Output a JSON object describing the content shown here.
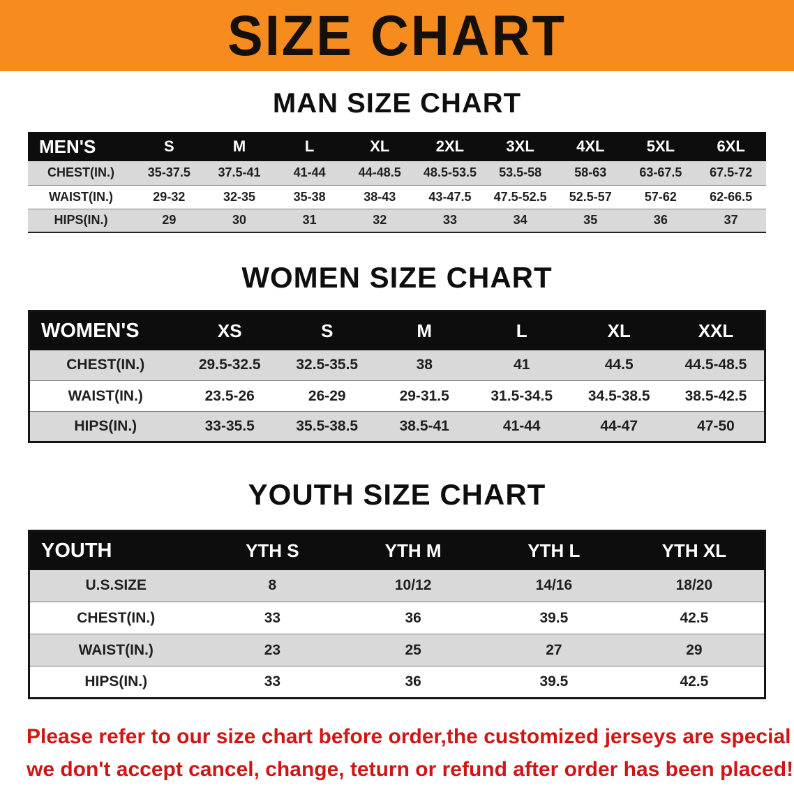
{
  "banner": {
    "title": "SIZE CHART",
    "bg_color": "#f68b1e"
  },
  "sections": [
    {
      "heading": "MAN SIZE CHART",
      "table": {
        "header": [
          "MEN'S",
          "S",
          "M",
          "L",
          "XL",
          "2XL",
          "3XL",
          "4XL",
          "5XL",
          "6XL"
        ],
        "rows": [
          [
            "CHEST(IN.)",
            "35-37.5",
            "37.5-41",
            "41-44",
            "44-48.5",
            "48.5-53.5",
            "53.5-58",
            "58-63",
            "63-67.5",
            "67.5-72"
          ],
          [
            "WAIST(IN.)",
            "29-32",
            "32-35",
            "35-38",
            "38-43",
            "43-47.5",
            "47.5-52.5",
            "52.5-57",
            "57-62",
            "62-66.5"
          ],
          [
            "HIPS(IN.)",
            "29",
            "30",
            "31",
            "32",
            "33",
            "34",
            "35",
            "36",
            "37"
          ]
        ]
      }
    },
    {
      "heading": "WOMEN SIZE CHART",
      "table": {
        "header": [
          "WOMEN'S",
          "XS",
          "S",
          "M",
          "L",
          "XL",
          "XXL"
        ],
        "rows": [
          [
            "CHEST(IN.)",
            "29.5-32.5",
            "32.5-35.5",
            "38",
            "41",
            "44.5",
            "44.5-48.5"
          ],
          [
            "WAIST(IN.)",
            "23.5-26",
            "26-29",
            "29-31.5",
            "31.5-34.5",
            "34.5-38.5",
            "38.5-42.5"
          ],
          [
            "HIPS(IN.)",
            "33-35.5",
            "35.5-38.5",
            "38.5-41",
            "41-44",
            "44-47",
            "47-50"
          ]
        ]
      }
    },
    {
      "heading": "YOUTH SIZE CHART",
      "table": {
        "header": [
          "YOUTH",
          "YTH S",
          "YTH M",
          "YTH L",
          "YTH XL"
        ],
        "rows": [
          [
            "U.S.SIZE",
            "8",
            "10/12",
            "14/16",
            "18/20"
          ],
          [
            "CHEST(IN.)",
            "33",
            "36",
            "39.5",
            "42.5"
          ],
          [
            "WAIST(IN.)",
            "23",
            "25",
            "27",
            "29"
          ],
          [
            "HIPS(IN.)",
            "33",
            "36",
            "39.5",
            "42.5"
          ]
        ]
      }
    }
  ],
  "footer": {
    "line1": "Please refer to our size chart before order,the customized jerseys are special products,",
    "line2": "we don't accept cancel, change, teturn or refund after order has been placed!",
    "text_color": "#cf1616"
  }
}
